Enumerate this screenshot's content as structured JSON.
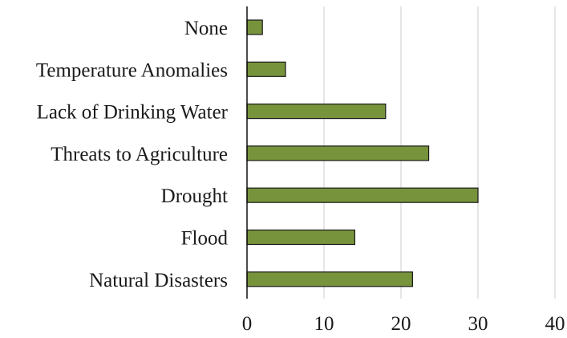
{
  "chart_data": {
    "type": "bar",
    "orientation": "horizontal",
    "categories": [
      "None",
      "Temperature Anomalies",
      "Lack of Drinking Water",
      "Threats to Agriculture",
      "Drought",
      "Flood",
      "Natural Disasters"
    ],
    "values": [
      2,
      5,
      18,
      23.6,
      30,
      14,
      21.5
    ],
    "x_ticks": [
      "0",
      "10",
      "20",
      "30",
      "40"
    ],
    "xlim": [
      0,
      40
    ],
    "grid": "vertical",
    "legend": "none",
    "title": "",
    "xlabel": "",
    "ylabel": ""
  },
  "colors": {
    "bar_fill": "#77933C",
    "bar_stroke": "#1a1a1a",
    "grid": "#d9d9d9",
    "axis": "#000000"
  }
}
